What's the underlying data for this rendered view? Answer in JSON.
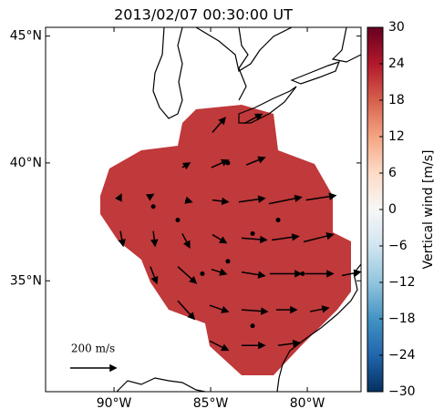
{
  "chart_data": {
    "type": "quiver",
    "title": "2013/02/07 00:30:00 UT",
    "projection": "mercator",
    "xlim": [
      -93.54,
      -77.22
    ],
    "ylim": [
      30.0,
      45.33
    ],
    "xticks": [
      {
        "value": -90,
        "label": "90°W"
      },
      {
        "value": -85,
        "label": "85°W"
      },
      {
        "value": -80,
        "label": "80°W"
      }
    ],
    "yticks": [
      {
        "value": 35,
        "label": "35°N"
      },
      {
        "value": 40,
        "label": "40°N"
      },
      {
        "value": 45,
        "label": "45°N"
      }
    ],
    "field_value": 21,
    "field_color": "#c0393b",
    "arrow_color": "#000000",
    "lon": [
      -84.91,
      -83.26,
      -86.47,
      -84.96,
      -83.16,
      -89.77,
      -88.21,
      -86.32,
      -84.91,
      -83.54,
      -81.98,
      -80.06,
      -89.67,
      -87.97,
      -86.47,
      -84.91,
      -83.4,
      -81.84,
      -80.19,
      -88.12,
      -86.7,
      -84.96,
      -83.4,
      -81.94,
      -80.1,
      -78.21,
      -86.7,
      -85.05,
      -83.4,
      -81.61,
      -79.86,
      -85.05,
      -83.4,
      -81.51,
      -87.97,
      -86.7,
      -84.11,
      -82.83,
      -81.51,
      -84.11,
      -85.43,
      -80.24,
      -82.83
    ],
    "lat": [
      41.24,
      41.6,
      39.81,
      39.81,
      39.92,
      38.46,
      38.58,
      38.46,
      38.46,
      38.38,
      38.31,
      38.46,
      37.15,
      37.15,
      37.04,
      37.0,
      36.85,
      36.77,
      36.69,
      35.62,
      35.62,
      35.5,
      35.38,
      35.31,
      35.31,
      35.23,
      34.12,
      33.92,
      33.72,
      33.72,
      33.64,
      32.32,
      32.12,
      32.12,
      38.19,
      37.62,
      40.0,
      37.04,
      37.62,
      35.85,
      35.31,
      35.31,
      33.0
    ],
    "u": [
      56,
      76,
      32,
      72,
      80,
      12,
      20,
      28,
      68,
      112,
      140,
      128,
      12,
      8,
      32,
      60,
      108,
      116,
      128,
      28,
      80,
      64,
      100,
      136,
      120,
      80,
      72,
      80,
      112,
      88,
      80,
      80,
      100,
      92,
      0,
      0,
      0,
      0,
      0,
      0,
      0,
      0,
      0
    ],
    "v": [
      64,
      40,
      20,
      32,
      32,
      24,
      12,
      -8,
      -8,
      16,
      28,
      20,
      -64,
      -64,
      -60,
      -36,
      -8,
      16,
      32,
      -72,
      -72,
      -20,
      -16,
      0,
      0,
      16,
      -80,
      -28,
      -8,
      0,
      16,
      -40,
      0,
      12,
      0,
      0,
      0,
      0,
      0,
      0,
      0,
      0,
      0
    ],
    "key_value": 200,
    "key_label": "200 m/s",
    "colorbar": {
      "label": "Vertical wind [m/s]",
      "lim": [
        -30,
        30
      ],
      "colors": [
        "#053061",
        "#2166ac",
        "#4393c3",
        "#92c5de",
        "#d1e5f0",
        "#f7f7f7",
        "#fddbc7",
        "#f4a582",
        "#d6604d",
        "#b2182b",
        "#67001f"
      ],
      "ticks": [
        {
          "value": -30,
          "label": "−30"
        },
        {
          "value": -24,
          "label": "−24"
        },
        {
          "value": -18,
          "label": "−18"
        },
        {
          "value": -12,
          "label": "−12"
        },
        {
          "value": -6,
          "label": "−6"
        },
        0,
        6,
        12,
        18,
        24,
        30
      ]
    }
  }
}
